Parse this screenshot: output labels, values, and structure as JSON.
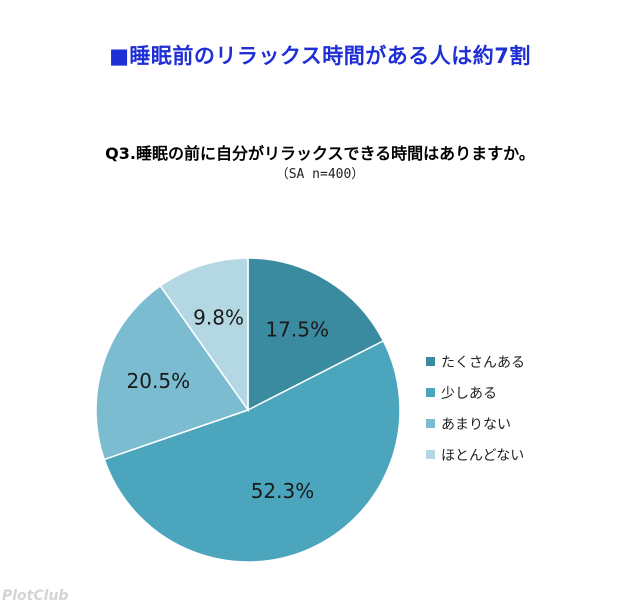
{
  "headline": "■睡眠前のリラックス時間がある人は約7割",
  "watermark": "PlotClub",
  "chart_data": {
    "type": "pie",
    "title": "Q3.睡眠の前に自分がリラックスできる時間はありますか。",
    "subtitle": "（SA n=400）",
    "legend_position": "right",
    "categories": [
      "たくさんある",
      "少しある",
      "あまりない",
      "ほとんどない"
    ],
    "values": [
      17.5,
      52.3,
      20.5,
      9.8
    ],
    "data_labels": [
      "17.5%",
      "52.3%",
      "20.5%",
      "9.8%"
    ],
    "colors": [
      "#3a8b9f",
      "#4aa5bd",
      "#7bbcd0",
      "#b3d8e4"
    ]
  }
}
